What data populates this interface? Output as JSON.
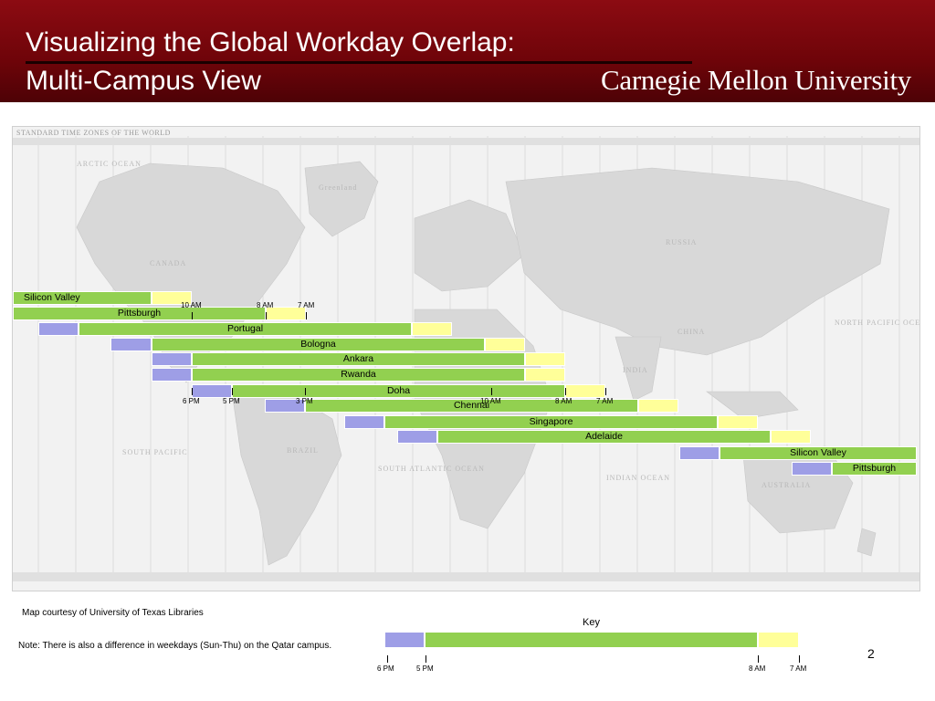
{
  "header": {
    "title_line1": "Visualizing the Global Workday Overlap:",
    "title_line2": "Multi-Campus View",
    "logo_text": "Carnegie Mellon University"
  },
  "map": {
    "title": "STANDARD TIME ZONES OF THE WORLD",
    "labels": {
      "russia": "RUSSIA",
      "canada": "CANADA",
      "china": "CHINA",
      "brazil": "BRAZIL",
      "australia": "AUSTRALIA",
      "india": "INDIA",
      "greenland": "Greenland",
      "south_atlantic": "SOUTH ATLANTIC OCEAN",
      "south_pacific": "SOUTH PACIFIC",
      "indian_ocean": "INDIAN OCEAN",
      "north_pacific": "NORTH PACIFIC OCEAN",
      "arctic": "ARCTIC OCEAN"
    }
  },
  "campuses": [
    {
      "name": "Silicon Valley",
      "blue": [
        0,
        0
      ],
      "green": [
        14,
        166
      ],
      "yellow": [
        166,
        210
      ],
      "label_align": "left"
    },
    {
      "name": "Pittsburgh",
      "blue": [
        0,
        0
      ],
      "green": [
        14,
        291
      ],
      "yellow": [
        291,
        335
      ],
      "label_align": "center"
    },
    {
      "name": "Portugal",
      "blue": [
        42,
        86
      ],
      "green": [
        86,
        451
      ],
      "yellow": [
        451,
        495
      ],
      "label_align": "center"
    },
    {
      "name": "Bologna",
      "blue": [
        121,
        166
      ],
      "green": [
        166,
        531
      ],
      "yellow": [
        531,
        575
      ],
      "label_align": "center"
    },
    {
      "name": "Ankara",
      "blue": [
        166,
        210
      ],
      "green": [
        210,
        575
      ],
      "yellow": [
        575,
        619
      ],
      "label_align": "center"
    },
    {
      "name": "Rwanda",
      "blue": [
        166,
        210
      ],
      "green": [
        210,
        575
      ],
      "yellow": [
        575,
        619
      ],
      "label_align": "center"
    },
    {
      "name": "Doha",
      "blue": [
        210,
        254
      ],
      "green": [
        254,
        619
      ],
      "yellow": [
        619,
        663
      ],
      "label_align": "center"
    },
    {
      "name": "Chennai",
      "blue": [
        290,
        334
      ],
      "green": [
        334,
        699
      ],
      "yellow": [
        699,
        743
      ],
      "label_align": "center"
    },
    {
      "name": "Singapore",
      "blue": [
        377,
        421
      ],
      "green": [
        421,
        786
      ],
      "yellow": [
        786,
        830
      ],
      "label_align": "center"
    },
    {
      "name": "Adelaide",
      "blue": [
        435,
        479
      ],
      "green": [
        479,
        844
      ],
      "yellow": [
        844,
        888
      ],
      "label_align": "center"
    },
    {
      "name": "Silicon Valley",
      "blue": [
        744,
        788
      ],
      "green": [
        788,
        1004
      ],
      "yellow": [
        0,
        0
      ],
      "label_align": "center"
    },
    {
      "name": "Pittsburgh",
      "blue": [
        867,
        911
      ],
      "green": [
        911,
        1004
      ],
      "yellow": [
        0,
        0
      ],
      "label_align": "center"
    }
  ],
  "timeline_top": {
    "ticks": [
      "10 AM",
      "8 AM",
      "7 AM"
    ]
  },
  "timeline_mid": {
    "ticks": [
      "6 PM",
      "5 PM",
      "3 PM",
      "10 AM",
      "8 AM",
      "7 AM"
    ]
  },
  "footer": {
    "map_credit": "Map courtesy of University of Texas Libraries",
    "note": "Note: There is also a difference in weekdays (Sun-Thu) on the Qatar campus.",
    "key_title": "Key",
    "key_ticks": [
      "6 PM",
      "5 PM",
      "8 AM",
      "7 AM"
    ],
    "page_number": "2"
  },
  "colors": {
    "header_red": "#7a070d",
    "before_work_blue": "#9e9ee6",
    "workday_green": "#92d050",
    "after_work_yellow": "#ffff99"
  }
}
